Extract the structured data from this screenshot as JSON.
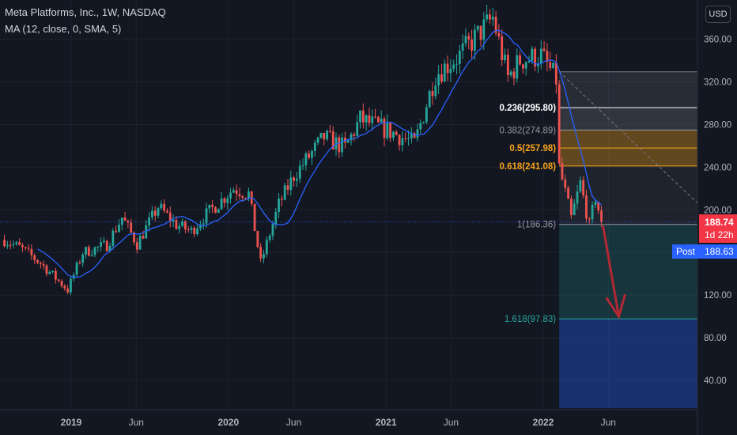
{
  "header": {
    "title": "Meta Platforms, Inc., 1W, NASDAQ",
    "indicator": "MA (12, close, 0, SMA, 5)",
    "currency": "USD"
  },
  "price_axis": {
    "labels": [
      "360.00",
      "320.00",
      "280.00",
      "240.00",
      "200.00",
      "160.00",
      "120.00",
      "80.00",
      "40.00"
    ],
    "last_price": "188.74",
    "countdown": "1d 22h",
    "post_label": "Post",
    "post_price": "188.63"
  },
  "time_axis": {
    "labels": [
      "2019",
      "Jun",
      "2020",
      "Jun",
      "2021",
      "Jun",
      "2022",
      "Jun"
    ]
  },
  "colors": {
    "background": "#131722",
    "up": "#26a69a",
    "down": "#ef5350",
    "ma_line": "#2962ff",
    "last_price_tag": "#f23645",
    "post_tag": "#2962ff"
  },
  "chart_data": {
    "type": "candlestick",
    "symbol": "Meta Platforms, Inc.",
    "interval": "1W",
    "exchange": "NASDAQ",
    "ylim": [
      10,
      385
    ],
    "grid": true,
    "anchors": [
      [
        "2018-07-30",
        172
      ],
      [
        "2018-09-10",
        163
      ],
      [
        "2018-10-22",
        150
      ],
      [
        "2018-12-24",
        125
      ],
      [
        "2019-01-28",
        160
      ],
      [
        "2019-03-25",
        167
      ],
      [
        "2019-04-29",
        193
      ],
      [
        "2019-06-03",
        168
      ],
      [
        "2019-07-22",
        203
      ],
      [
        "2019-09-02",
        186
      ],
      [
        "2019-10-07",
        180
      ],
      [
        "2019-11-04",
        193
      ],
      [
        "2020-01-13",
        220
      ],
      [
        "2020-02-17",
        215
      ],
      [
        "2020-03-16",
        150
      ],
      [
        "2020-04-27",
        205
      ],
      [
        "2020-06-01",
        232
      ],
      [
        "2020-08-10",
        268
      ],
      [
        "2020-09-28",
        258
      ],
      [
        "2020-11-02",
        285
      ],
      [
        "2021-01-18",
        272
      ],
      [
        "2021-03-08",
        262
      ],
      [
        "2021-04-26",
        327
      ],
      [
        "2021-06-21",
        345
      ],
      [
        "2021-09-06",
        380
      ],
      [
        "2021-10-11",
        324
      ],
      [
        "2021-11-08",
        340
      ],
      [
        "2021-12-27",
        345
      ],
      [
        "2022-01-31",
        322
      ],
      [
        "2022-02-07",
        240
      ],
      [
        "2022-03-07",
        192
      ],
      [
        "2022-03-28",
        225
      ],
      [
        "2022-04-18",
        185
      ],
      [
        "2022-05-02",
        212
      ],
      [
        "2022-05-16",
        188.74
      ]
    ],
    "ma": {
      "period": 12,
      "source": "close",
      "offset": 0,
      "type": "SMA"
    },
    "fib_retracement": {
      "levels": [
        {
          "label": "0.236(295.80)",
          "ratio": 0.236,
          "price": 295.8,
          "color": "#ffffff"
        },
        {
          "label": "0.382(274.89)",
          "ratio": 0.382,
          "price": 274.89,
          "color": "#9598a1"
        },
        {
          "label": "0.5(257.98)",
          "ratio": 0.5,
          "price": 257.98,
          "color": "#f7a21b"
        },
        {
          "label": "0.618(241.08)",
          "ratio": 0.618,
          "price": 241.08,
          "color": "#f7a21b"
        },
        {
          "label": "1(186.36)",
          "ratio": 1,
          "price": 186.36,
          "color": "#9598a1"
        },
        {
          "label": "1.618(97.83)",
          "ratio": 1.618,
          "price": 97.83,
          "color": "#26a69a"
        }
      ],
      "top_price": 329.5,
      "start_date": "2022-02-07"
    },
    "projection_arrow": {
      "from_price": 185,
      "to_price": 100
    },
    "last_price": 188.74,
    "post_price": 188.63
  }
}
